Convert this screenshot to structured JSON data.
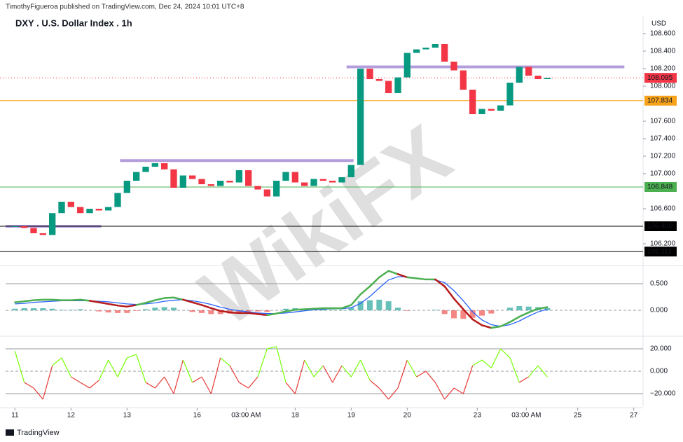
{
  "header": {
    "published": "TimothyFigueroa published on TradingView.com, Dec 24, 2024 10:01 UTC+8",
    "symbol": "DXY . U.S. Dollar Index . 1h",
    "currency": "USD",
    "watermark": "WikiFX",
    "brand": "TradingView"
  },
  "chart_data": [
    {
      "type": "candlestick",
      "x": [
        0,
        4,
        8,
        12,
        16,
        20,
        24,
        28,
        32,
        36,
        40,
        44,
        48,
        52,
        56,
        60,
        64,
        68,
        72,
        76,
        80,
        84,
        88,
        92,
        96,
        100,
        104,
        108,
        112,
        116,
        120,
        124,
        128,
        132,
        136,
        140,
        144,
        148,
        152,
        156,
        160,
        164,
        168,
        172,
        176,
        180,
        184,
        188,
        192,
        196,
        200,
        204,
        208,
        212,
        216,
        220,
        224,
        228
      ],
      "close": [
        106.4,
        106.38,
        106.32,
        106.3,
        106.55,
        106.68,
        106.62,
        106.55,
        106.6,
        106.58,
        106.62,
        106.78,
        106.92,
        107.02,
        107.08,
        107.12,
        107.05,
        106.84,
        106.98,
        106.94,
        106.88,
        106.86,
        106.92,
        106.9,
        107.04,
        106.86,
        106.82,
        106.74,
        106.92,
        107.02,
        106.9,
        106.86,
        106.94,
        106.92,
        106.9,
        106.96,
        107.1,
        108.2,
        108.08,
        108.06,
        107.92,
        108.1,
        108.38,
        108.42,
        108.44,
        108.48,
        108.28,
        108.18,
        107.96,
        107.68,
        107.74,
        107.72,
        107.78,
        108.04,
        108.22,
        108.12,
        108.08,
        108.095
      ],
      "up_color": "#089981",
      "down_color": "#f23645",
      "xlim": [
        -4,
        269
      ],
      "xticks": [
        {
          "value": 0,
          "label": "11"
        },
        {
          "value": 24,
          "label": "12"
        },
        {
          "value": 48,
          "label": "13"
        },
        {
          "value": 78,
          "label": "16"
        },
        {
          "value": 99,
          "label": "03:00 AM"
        },
        {
          "value": 120,
          "label": "18"
        },
        {
          "value": 144,
          "label": "19"
        },
        {
          "value": 168,
          "label": "20"
        },
        {
          "value": 198,
          "label": "23"
        },
        {
          "value": 219,
          "label": "03:00 AM"
        },
        {
          "value": 241,
          "label": "25"
        },
        {
          "value": 265,
          "label": "27"
        }
      ],
      "ylim": [
        105.96,
        108.808
      ],
      "yticks": [
        {
          "value": 108.6,
          "label": "108.600"
        },
        {
          "value": 108.4,
          "label": "108.400"
        },
        {
          "value": 108.2,
          "label": "108.200"
        },
        {
          "value": 108.0,
          "label": "108.000"
        },
        {
          "value": 107.6,
          "label": "107.600"
        },
        {
          "value": 107.4,
          "label": "107.400"
        },
        {
          "value": 107.2,
          "label": "107.200"
        },
        {
          "value": 107.0,
          "label": "107.000"
        },
        {
          "value": 106.6,
          "label": "106.600"
        },
        {
          "value": 106.2,
          "label": "106.200"
        }
      ],
      "levels": [
        {
          "value": 108.095,
          "label": "108.095",
          "color": "#f23645",
          "dashed": true
        },
        {
          "value": 107.834,
          "label": "107.834",
          "color": "#f7a21b",
          "dashed": false
        },
        {
          "value": 106.848,
          "label": "106.848",
          "color": "#4caf50",
          "dashed": false
        },
        {
          "value": 106.4,
          "label": "106.400",
          "color": "#000000",
          "dashed": false
        },
        {
          "value": 106.111,
          "label": "106.111",
          "color": "#000000",
          "dashed": false
        }
      ],
      "zones": [
        {
          "y": 108.22,
          "x": [
            142,
            261
          ]
        },
        {
          "y": 107.15,
          "x": [
            45,
            145
          ]
        },
        {
          "y": 106.4,
          "x": [
            -4,
            37
          ]
        }
      ],
      "zone_color": "#b39ddb"
    },
    {
      "type": "macd",
      "x": [
        0,
        4,
        8,
        12,
        16,
        20,
        24,
        28,
        32,
        36,
        40,
        44,
        48,
        52,
        56,
        60,
        64,
        68,
        72,
        76,
        80,
        84,
        88,
        92,
        96,
        100,
        104,
        108,
        112,
        116,
        120,
        124,
        128,
        132,
        136,
        140,
        144,
        148,
        152,
        156,
        160,
        164,
        168,
        172,
        176,
        180,
        184,
        188,
        192,
        196,
        200,
        204,
        208,
        212,
        216,
        220,
        224,
        228
      ],
      "xlim": [
        -4,
        269
      ],
      "ylim": [
        -0.46,
        0.829
      ],
      "yticks": [
        {
          "value": 0.5,
          "label": "0.500"
        },
        {
          "value": 0,
          "label": "0.000"
        }
      ],
      "macd": {
        "up_color": "#4caf50",
        "down_color": "#b71c1c",
        "values": [
          0.15,
          0.17,
          0.19,
          0.2,
          0.2,
          0.19,
          0.19,
          0.2,
          0.18,
          0.15,
          0.12,
          0.09,
          0.07,
          0.1,
          0.14,
          0.19,
          0.23,
          0.24,
          0.2,
          0.15,
          0.1,
          0.04,
          -0.01,
          -0.04,
          -0.05,
          -0.05,
          -0.07,
          -0.09,
          -0.06,
          -0.02,
          0.01,
          0.02,
          0.03,
          0.04,
          0.04,
          0.04,
          0.1,
          0.3,
          0.45,
          0.62,
          0.74,
          0.68,
          0.62,
          0.6,
          0.58,
          0.58,
          0.45,
          0.22,
          0.02,
          -0.17,
          -0.28,
          -0.33,
          -0.3,
          -0.22,
          -0.12,
          -0.04,
          0.03,
          0.06
        ]
      },
      "signal": {
        "color": "#2962ff",
        "values": [
          0.12,
          0.13,
          0.15,
          0.16,
          0.17,
          0.18,
          0.18,
          0.18,
          0.18,
          0.17,
          0.16,
          0.14,
          0.12,
          0.11,
          0.12,
          0.14,
          0.17,
          0.19,
          0.2,
          0.18,
          0.15,
          0.11,
          0.06,
          0.02,
          -0.01,
          -0.03,
          -0.05,
          -0.06,
          -0.06,
          -0.05,
          -0.03,
          -0.01,
          0.01,
          0.02,
          0.03,
          0.03,
          0.05,
          0.13,
          0.26,
          0.42,
          0.57,
          0.63,
          0.63,
          0.6,
          0.58,
          0.57,
          0.52,
          0.37,
          0.18,
          -0.03,
          -0.18,
          -0.27,
          -0.3,
          -0.27,
          -0.2,
          -0.11,
          -0.03,
          0.02
        ]
      },
      "histogram": {
        "up_color": "#26a69a",
        "down_color": "#ef5350",
        "values": [
          0.03,
          0.04,
          0.04,
          0.04,
          0.03,
          0.01,
          0.01,
          0.02,
          0,
          -0.02,
          -0.04,
          -0.05,
          -0.05,
          -0.01,
          0.02,
          0.05,
          0.06,
          0.05,
          0,
          -0.03,
          -0.05,
          -0.07,
          -0.07,
          -0.06,
          -0.04,
          -0.02,
          -0.02,
          -0.03,
          0,
          0.03,
          0.04,
          0.03,
          0.02,
          0.02,
          0.01,
          0.01,
          0.05,
          0.17,
          0.19,
          0.2,
          0.17,
          0.05,
          -0.01,
          0,
          0,
          0.01,
          -0.07,
          -0.15,
          -0.16,
          -0.14,
          -0.1,
          -0.06,
          0,
          0.05,
          0.08,
          0.07,
          0.06,
          0.04
        ]
      }
    },
    {
      "type": "oscillator",
      "x": [
        0,
        4,
        8,
        12,
        16,
        20,
        24,
        28,
        32,
        36,
        40,
        44,
        48,
        52,
        56,
        60,
        64,
        68,
        72,
        76,
        80,
        84,
        88,
        92,
        96,
        100,
        104,
        108,
        112,
        116,
        120,
        124,
        128,
        132,
        136,
        140,
        144,
        148,
        152,
        156,
        160,
        164,
        168,
        172,
        176,
        180,
        184,
        188,
        192,
        196,
        200,
        204,
        208,
        212,
        216,
        220,
        224,
        228
      ],
      "xlim": [
        -4,
        269
      ],
      "ylim": [
        -31.25,
        30
      ],
      "yticks": [
        {
          "value": 20,
          "label": "20.000"
        },
        {
          "value": 0,
          "label": "0.000"
        },
        {
          "value": -20,
          "label": "−20.000"
        }
      ],
      "up_color": "#76ff03",
      "down_color": "#e53935",
      "values": [
        18,
        -10,
        -15,
        -25,
        5,
        12,
        -5,
        -10,
        -15,
        -8,
        10,
        -5,
        12,
        15,
        -10,
        -15,
        -5,
        -20,
        10,
        -10,
        -5,
        -20,
        12,
        5,
        -10,
        -15,
        -5,
        20,
        22,
        -10,
        -20,
        10,
        -5,
        5,
        -10,
        5,
        -5,
        10,
        -8,
        -15,
        -25,
        -15,
        10,
        -5,
        0,
        -10,
        -25,
        -15,
        -20,
        5,
        10,
        3,
        20,
        12,
        -10,
        -5,
        5,
        -5
      ]
    }
  ]
}
